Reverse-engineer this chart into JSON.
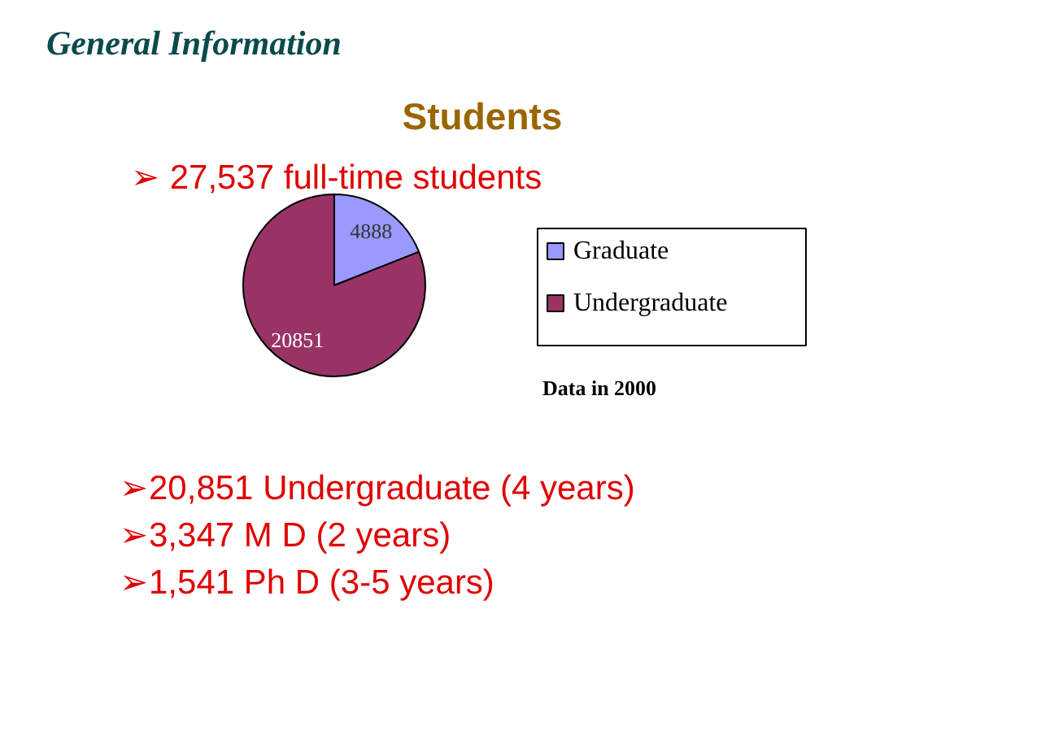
{
  "chart_data": {
    "type": "pie",
    "title": "Students",
    "categories": [
      "Graduate",
      "Undergraduate"
    ],
    "values": [
      4888,
      20851
    ],
    "colors": [
      "#9999ff",
      "#993366"
    ],
    "data_labels": true,
    "legend": "right",
    "annotations": [
      "General Information",
      "➢ 27,537 full-time students",
      "Data in 2000",
      "➢20,851 Undergraduate (4 years)",
      "➢3,347 M D (2 years)",
      "➢1,541 Ph D (3-5 years)"
    ]
  }
}
